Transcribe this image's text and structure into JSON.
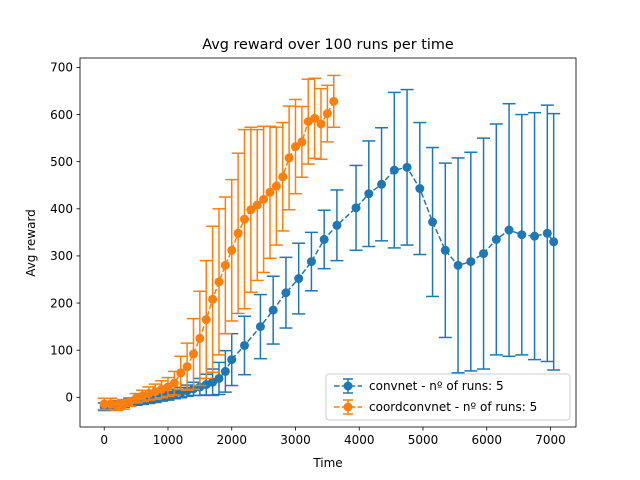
{
  "chart_data": {
    "type": "line",
    "title": "Avg reward over 100 runs per time",
    "xlabel": "Time",
    "ylabel": "Avg reward",
    "xlim": [
      -380,
      7400
    ],
    "ylim": [
      -63,
      720
    ],
    "xticks": [
      0,
      1000,
      2000,
      3000,
      4000,
      5000,
      6000,
      7000
    ],
    "yticks": [
      0,
      100,
      200,
      300,
      400,
      500,
      600,
      700
    ],
    "grid": false,
    "legend_position": "lower right",
    "series": [
      {
        "name": "convnet - nº of runs: 5",
        "color": "#1f77b4",
        "linestyle": "dashed",
        "marker": "circle",
        "x": [
          0,
          100,
          200,
          300,
          400,
          500,
          600,
          700,
          800,
          900,
          1000,
          1100,
          1200,
          1300,
          1400,
          1500,
          1600,
          1700,
          1800,
          1900,
          2000,
          2200,
          2450,
          2650,
          2850,
          3050,
          3250,
          3450,
          3650,
          3950,
          4150,
          4350,
          4550,
          4750,
          4950,
          5150,
          5350,
          5550,
          5750,
          5950,
          6150,
          6350,
          6550,
          6750,
          6950,
          7050
        ],
        "y": [
          -20,
          -18,
          -15,
          -13,
          -11,
          -9,
          -7,
          -5,
          -3,
          0,
          3,
          7,
          10,
          14,
          18,
          22,
          27,
          32,
          40,
          55,
          80,
          110,
          150,
          185,
          222,
          252,
          288,
          335,
          365,
          402,
          432,
          452,
          482,
          488,
          443,
          372,
          312,
          280,
          288,
          305,
          335,
          355,
          345,
          342,
          348,
          330
        ],
        "err": [
          8,
          8,
          8,
          8,
          8,
          8,
          8,
          8,
          8,
          8,
          9,
          10,
          11,
          12,
          14,
          18,
          22,
          28,
          34,
          44,
          55,
          62,
          68,
          72,
          75,
          75,
          62,
          62,
          75,
          90,
          112,
          120,
          165,
          165,
          140,
          158,
          185,
          228,
          232,
          245,
          245,
          268,
          255,
          262,
          272,
          272
        ]
      },
      {
        "name": "coordconvnet - nº of runs: 5",
        "color": "#ff7f0e",
        "linestyle": "dashed",
        "marker": "circle",
        "x": [
          0,
          100,
          200,
          300,
          400,
          500,
          600,
          700,
          800,
          900,
          1000,
          1100,
          1200,
          1300,
          1400,
          1500,
          1600,
          1700,
          1800,
          1900,
          2000,
          2100,
          2200,
          2300,
          2400,
          2500,
          2600,
          2700,
          2800,
          2900,
          3000,
          3100,
          3200,
          3300,
          3400,
          3500,
          3600
        ],
        "y": [
          -14,
          -14,
          -18,
          -15,
          -10,
          -2,
          3,
          8,
          12,
          17,
          22,
          30,
          52,
          65,
          92,
          125,
          165,
          208,
          245,
          280,
          312,
          348,
          378,
          398,
          408,
          420,
          435,
          448,
          468,
          508,
          532,
          542,
          585,
          592,
          580,
          602,
          628
        ],
        "err": [
          12,
          12,
          10,
          10,
          9,
          10,
          12,
          14,
          16,
          18,
          20,
          25,
          35,
          50,
          75,
          100,
          125,
          155,
          155,
          145,
          150,
          170,
          190,
          175,
          160,
          155,
          140,
          125,
          115,
          110,
          100,
          75,
          90,
          85,
          75,
          60,
          55
        ]
      }
    ]
  }
}
